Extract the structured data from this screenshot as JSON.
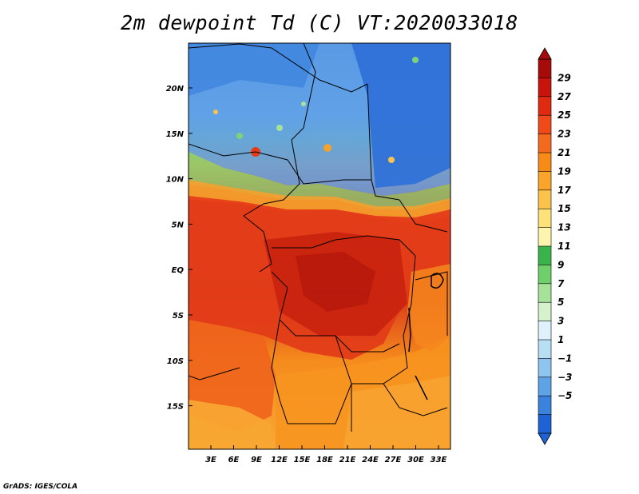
{
  "title": "2m dewpoint Td (C) VT:2020033018",
  "credit": "GrADS: IGES/COLA",
  "map": {
    "lat_labels": [
      "20N",
      "15N",
      "10N",
      "5N",
      "EQ",
      "5S",
      "10S",
      "15S"
    ],
    "lon_labels": [
      "3E",
      "6E",
      "9E",
      "12E",
      "15E",
      "18E",
      "21E",
      "24E",
      "27E",
      "30E",
      "33E"
    ],
    "field": "2m dewpoint temperature",
    "units": "C"
  },
  "colorbar": {
    "levels": [
      "29",
      "27",
      "25",
      "23",
      "21",
      "19",
      "17",
      "15",
      "13",
      "11",
      "9",
      "7",
      "5",
      "3",
      "1",
      "−1",
      "−3",
      "−5"
    ],
    "colors": [
      "#a50b0b",
      "#c7150d",
      "#e02a12",
      "#f04a1a",
      "#f46a1c",
      "#f78b18",
      "#f9a52b",
      "#fbc24c",
      "#fde27a",
      "#fdf5ae",
      "#39b34a",
      "#6fcf6a",
      "#a6e29a",
      "#d5f2cd",
      "#dff2fb",
      "#b8def4",
      "#8dc5ee",
      "#5ea3e5",
      "#3a82dd",
      "#1f62d3"
    ]
  }
}
